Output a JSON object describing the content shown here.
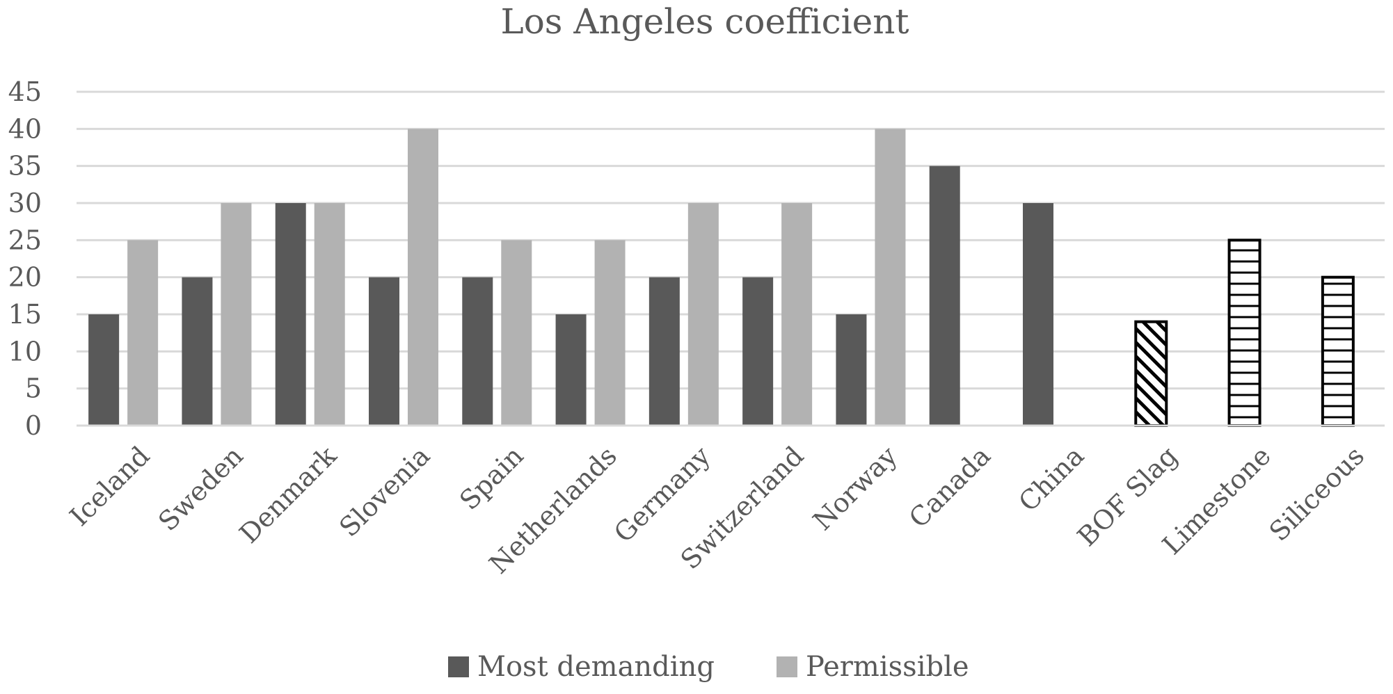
{
  "chart_data": {
    "type": "bar",
    "title": "Los Angeles coefficient",
    "categories": [
      "Iceland",
      "Sweden",
      "Denmark",
      "Slovenia",
      "Spain",
      "Netherlands",
      "Germany",
      "Switzerland",
      "Norway",
      "Canada",
      "China",
      "BOF Slag",
      "Limestone",
      "Siliceous"
    ],
    "series": [
      {
        "name": "Most demanding",
        "color": "#595959",
        "values": [
          15,
          20,
          30,
          20,
          20,
          15,
          20,
          20,
          15,
          35,
          30,
          null,
          null,
          null
        ]
      },
      {
        "name": "Permissible",
        "color": "#b2b2b2",
        "values": [
          25,
          30,
          30,
          40,
          25,
          25,
          30,
          30,
          40,
          null,
          null,
          null,
          null,
          null
        ]
      }
    ],
    "unlabeled_bars": [
      {
        "category": "BOF Slag",
        "value": 14,
        "pattern": "diagonal-hatch"
      },
      {
        "category": "Limestone",
        "value": 25,
        "pattern": "horizontal-hatch"
      },
      {
        "category": "Siliceous",
        "value": 20,
        "pattern": "horizontal-hatch"
      }
    ],
    "yticks": [
      0,
      5,
      10,
      15,
      20,
      25,
      30,
      35,
      40,
      45
    ],
    "ylim": [
      0,
      45
    ],
    "grid": true,
    "legend_position": "bottom"
  }
}
